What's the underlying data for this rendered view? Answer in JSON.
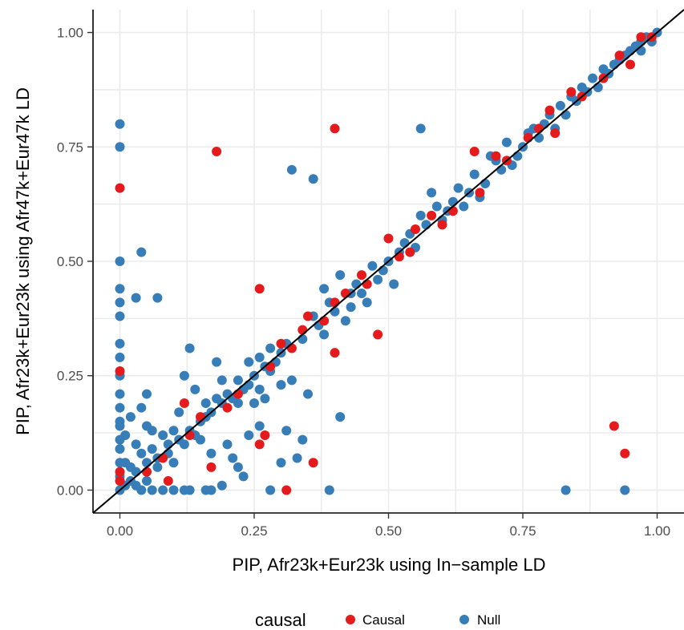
{
  "chart_data": {
    "type": "scatter",
    "xlabel": "PIP, Afr23k+Eur23k using In−sample LD",
    "ylabel": "PIP, Afr23k+Eur23k using Afr47k+Eur47k LD",
    "xlim": [
      -0.05,
      1.05
    ],
    "ylim": [
      -0.05,
      1.05
    ],
    "x_ticks": [
      0.0,
      0.25,
      0.5,
      0.75,
      1.0
    ],
    "x_tick_labels": [
      "0.00",
      "0.25",
      "0.50",
      "0.75",
      "1.00"
    ],
    "y_ticks": [
      0.0,
      0.25,
      0.5,
      0.75,
      1.0
    ],
    "y_tick_labels": [
      "0.00",
      "0.25",
      "0.50",
      "0.75",
      "1.00"
    ],
    "grid": true,
    "reference_line": {
      "type": "identity",
      "color": "#000000"
    },
    "legend": {
      "title": "causal",
      "position": "bottom",
      "entries": [
        {
          "label": "Causal",
          "color": "#e41a1c"
        },
        {
          "label": "Null",
          "color": "#377eb8"
        }
      ]
    },
    "series": [
      {
        "name": "Null",
        "color": "#377eb8",
        "points": [
          [
            0.0,
            0.8
          ],
          [
            0.0,
            0.75
          ],
          [
            0.0,
            0.5
          ],
          [
            0.0,
            0.44
          ],
          [
            0.0,
            0.41
          ],
          [
            0.0,
            0.38
          ],
          [
            0.0,
            0.32
          ],
          [
            0.0,
            0.29
          ],
          [
            0.0,
            0.25
          ],
          [
            0.0,
            0.21
          ],
          [
            0.0,
            0.18
          ],
          [
            0.0,
            0.14
          ],
          [
            0.0,
            0.11
          ],
          [
            0.0,
            0.09
          ],
          [
            0.0,
            0.06
          ],
          [
            0.0,
            0.03
          ],
          [
            0.0,
            0.0
          ],
          [
            0.0,
            0.15
          ],
          [
            0.04,
            0.52
          ],
          [
            0.03,
            0.42
          ],
          [
            0.07,
            0.42
          ],
          [
            0.02,
            0.05
          ],
          [
            0.03,
            0.1
          ],
          [
            0.05,
            0.02
          ],
          [
            0.04,
            0.18
          ],
          [
            0.05,
            0.21
          ],
          [
            0.01,
            0.12
          ],
          [
            0.06,
            0.0
          ],
          [
            0.08,
            0.0
          ],
          [
            0.1,
            0.0
          ],
          [
            0.12,
            0.0
          ],
          [
            0.13,
            0.0
          ],
          [
            0.16,
            0.0
          ],
          [
            0.17,
            0.0
          ],
          [
            0.19,
            0.01
          ],
          [
            0.07,
            0.05
          ],
          [
            0.09,
            0.08
          ],
          [
            0.1,
            0.13
          ],
          [
            0.11,
            0.17
          ],
          [
            0.13,
            0.31
          ],
          [
            0.12,
            0.25
          ],
          [
            0.14,
            0.22
          ],
          [
            0.16,
            0.16
          ],
          [
            0.18,
            0.2
          ],
          [
            0.18,
            0.28
          ],
          [
            0.15,
            0.11
          ],
          [
            0.17,
            0.08
          ],
          [
            0.2,
            0.1
          ],
          [
            0.21,
            0.07
          ],
          [
            0.22,
            0.05
          ],
          [
            0.23,
            0.03
          ],
          [
            0.24,
            0.12
          ],
          [
            0.25,
            0.19
          ],
          [
            0.26,
            0.14
          ],
          [
            0.27,
            0.2
          ],
          [
            0.28,
            0.26
          ],
          [
            0.3,
            0.23
          ],
          [
            0.22,
            0.24
          ],
          [
            0.24,
            0.28
          ],
          [
            0.26,
            0.29
          ],
          [
            0.28,
            0.31
          ],
          [
            0.3,
            0.3
          ],
          [
            0.32,
            0.7
          ],
          [
            0.36,
            0.68
          ],
          [
            0.56,
            0.79
          ],
          [
            0.28,
            0.0
          ],
          [
            0.39,
            0.0
          ],
          [
            0.83,
            0.0
          ],
          [
            0.94,
            0.0
          ],
          [
            0.31,
            0.13
          ],
          [
            0.34,
            0.11
          ],
          [
            0.3,
            0.06
          ],
          [
            0.33,
            0.07
          ],
          [
            0.35,
            0.21
          ],
          [
            0.32,
            0.24
          ],
          [
            0.41,
            0.16
          ],
          [
            0.38,
            0.34
          ],
          [
            0.36,
            0.38
          ],
          [
            0.39,
            0.41
          ],
          [
            0.38,
            0.44
          ],
          [
            0.42,
            0.37
          ],
          [
            0.43,
            0.43
          ],
          [
            0.41,
            0.47
          ],
          [
            0.44,
            0.45
          ],
          [
            0.46,
            0.41
          ],
          [
            0.48,
            0.46
          ],
          [
            0.5,
            0.5
          ],
          [
            0.51,
            0.45
          ],
          [
            0.52,
            0.52
          ],
          [
            0.54,
            0.56
          ],
          [
            0.56,
            0.6
          ],
          [
            0.58,
            0.65
          ],
          [
            0.6,
            0.59
          ],
          [
            0.62,
            0.63
          ],
          [
            0.64,
            0.62
          ],
          [
            0.66,
            0.69
          ],
          [
            0.68,
            0.67
          ],
          [
            0.7,
            0.72
          ],
          [
            0.72,
            0.76
          ],
          [
            0.74,
            0.73
          ],
          [
            0.76,
            0.78
          ],
          [
            0.78,
            0.77
          ],
          [
            0.8,
            0.82
          ],
          [
            0.82,
            0.84
          ],
          [
            0.84,
            0.86
          ],
          [
            0.86,
            0.88
          ],
          [
            0.88,
            0.9
          ],
          [
            0.9,
            0.92
          ],
          [
            0.92,
            0.93
          ],
          [
            0.94,
            0.95
          ],
          [
            0.96,
            0.97
          ],
          [
            0.98,
            0.99
          ],
          [
            1.0,
            1.0
          ],
          [
            0.99,
            0.98
          ],
          [
            0.97,
            0.96
          ],
          [
            0.95,
            0.96
          ],
          [
            0.87,
            0.87
          ],
          [
            0.83,
            0.82
          ],
          [
            0.79,
            0.8
          ],
          [
            0.75,
            0.75
          ],
          [
            0.71,
            0.7
          ],
          [
            0.69,
            0.73
          ],
          [
            0.65,
            0.65
          ],
          [
            0.61,
            0.61
          ],
          [
            0.57,
            0.58
          ],
          [
            0.53,
            0.54
          ],
          [
            0.49,
            0.48
          ],
          [
            0.45,
            0.43
          ],
          [
            0.4,
            0.39
          ],
          [
            0.37,
            0.36
          ],
          [
            0.34,
            0.33
          ],
          [
            0.31,
            0.32
          ],
          [
            0.29,
            0.28
          ],
          [
            0.27,
            0.27
          ],
          [
            0.25,
            0.25
          ],
          [
            0.23,
            0.22
          ],
          [
            0.21,
            0.2
          ],
          [
            0.19,
            0.19
          ],
          [
            0.17,
            0.17
          ],
          [
            0.15,
            0.15
          ],
          [
            0.13,
            0.13
          ],
          [
            0.11,
            0.11
          ],
          [
            0.09,
            0.1
          ],
          [
            0.07,
            0.07
          ],
          [
            0.05,
            0.06
          ],
          [
            0.03,
            0.04
          ],
          [
            0.02,
            0.02
          ],
          [
            0.01,
            0.01
          ],
          [
            0.06,
            0.09
          ],
          [
            0.08,
            0.12
          ],
          [
            0.1,
            0.06
          ],
          [
            0.12,
            0.1
          ],
          [
            0.14,
            0.12
          ],
          [
            0.16,
            0.19
          ],
          [
            0.19,
            0.24
          ],
          [
            0.2,
            0.21
          ],
          [
            0.22,
            0.19
          ],
          [
            0.24,
            0.23
          ],
          [
            0.26,
            0.22
          ],
          [
            0.43,
            0.4
          ],
          [
            0.47,
            0.49
          ],
          [
            0.55,
            0.53
          ],
          [
            0.59,
            0.62
          ],
          [
            0.63,
            0.66
          ],
          [
            0.67,
            0.64
          ],
          [
            0.73,
            0.71
          ],
          [
            0.77,
            0.79
          ],
          [
            0.81,
            0.79
          ],
          [
            0.85,
            0.85
          ],
          [
            0.89,
            0.88
          ],
          [
            0.91,
            0.91
          ],
          [
            0.93,
            0.94
          ],
          [
            0.97,
            0.98
          ],
          [
            0.04,
            0.08
          ],
          [
            0.06,
            0.13
          ],
          [
            0.02,
            0.16
          ],
          [
            0.05,
            0.14
          ],
          [
            0.03,
            0.01
          ],
          [
            0.04,
            0.0
          ],
          [
            0.01,
            0.06
          ]
        ]
      },
      {
        "name": "Causal",
        "color": "#e41a1c",
        "points": [
          [
            0.0,
            0.66
          ],
          [
            0.0,
            0.26
          ],
          [
            0.0,
            0.02
          ],
          [
            0.0,
            0.04
          ],
          [
            0.18,
            0.74
          ],
          [
            0.4,
            0.79
          ],
          [
            0.26,
            0.44
          ],
          [
            0.48,
            0.34
          ],
          [
            0.31,
            0.0
          ],
          [
            0.36,
            0.06
          ],
          [
            0.92,
            0.14
          ],
          [
            0.94,
            0.08
          ],
          [
            0.17,
            0.05
          ],
          [
            0.09,
            0.02
          ],
          [
            0.12,
            0.19
          ],
          [
            0.26,
            0.1
          ],
          [
            0.27,
            0.12
          ],
          [
            0.4,
            0.3
          ],
          [
            0.35,
            0.38
          ],
          [
            0.4,
            0.41
          ],
          [
            0.3,
            0.32
          ],
          [
            0.45,
            0.47
          ],
          [
            0.5,
            0.55
          ],
          [
            0.52,
            0.51
          ],
          [
            0.55,
            0.57
          ],
          [
            0.58,
            0.6
          ],
          [
            0.6,
            0.58
          ],
          [
            0.62,
            0.61
          ],
          [
            0.66,
            0.74
          ],
          [
            0.67,
            0.65
          ],
          [
            0.7,
            0.73
          ],
          [
            0.72,
            0.72
          ],
          [
            0.76,
            0.77
          ],
          [
            0.78,
            0.79
          ],
          [
            0.8,
            0.83
          ],
          [
            0.81,
            0.78
          ],
          [
            0.84,
            0.87
          ],
          [
            0.86,
            0.86
          ],
          [
            0.9,
            0.9
          ],
          [
            0.93,
            0.95
          ],
          [
            0.95,
            0.93
          ],
          [
            0.97,
            0.99
          ],
          [
            0.99,
            0.99
          ],
          [
            0.28,
            0.27
          ],
          [
            0.32,
            0.31
          ],
          [
            0.34,
            0.35
          ],
          [
            0.42,
            0.43
          ],
          [
            0.46,
            0.45
          ],
          [
            0.2,
            0.18
          ],
          [
            0.22,
            0.21
          ],
          [
            0.08,
            0.07
          ],
          [
            0.05,
            0.04
          ],
          [
            0.13,
            0.12
          ],
          [
            0.15,
            0.16
          ],
          [
            0.38,
            0.37
          ],
          [
            0.54,
            0.52
          ]
        ]
      }
    ]
  }
}
